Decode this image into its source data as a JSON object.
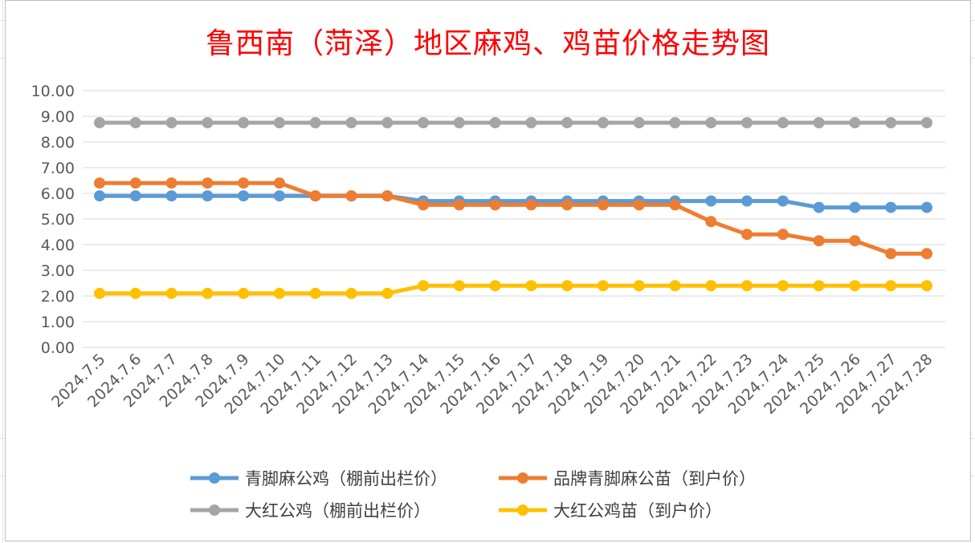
{
  "chart_data": {
    "type": "line",
    "title": "鲁西南（菏泽）地区麻鸡、鸡苗价格走势图",
    "categories": [
      "2024.7.5",
      "2024.7.6",
      "2024.7.7",
      "2024.7.8",
      "2024.7.9",
      "2024.7.10",
      "2024.7.11",
      "2024.7.12",
      "2024.7.13",
      "2024.7.14",
      "2024.7.15",
      "2024.7.16",
      "2024.7.17",
      "2024.7.18",
      "2024.7.19",
      "2024.7.20",
      "2024.7.21",
      "2024.7.22",
      "2024.7.23",
      "2024.7.24",
      "2024.7.25",
      "2024.7.26",
      "2024.7.27",
      "2024.7.28"
    ],
    "ylim": [
      0,
      10
    ],
    "y_ticks": [
      "0.00",
      "1.00",
      "2.00",
      "3.00",
      "4.00",
      "5.00",
      "6.00",
      "7.00",
      "8.00",
      "9.00",
      "10.00"
    ],
    "grid": true,
    "legend_position": "bottom",
    "series": [
      {
        "name": "青脚麻公鸡（棚前出栏价）",
        "color": "#5b9bd5",
        "values": [
          5.9,
          5.9,
          5.9,
          5.9,
          5.9,
          5.9,
          5.9,
          5.9,
          5.9,
          5.7,
          5.7,
          5.7,
          5.7,
          5.7,
          5.7,
          5.7,
          5.7,
          5.7,
          5.7,
          5.7,
          5.45,
          5.45,
          5.45,
          5.45
        ]
      },
      {
        "name": "品牌青脚麻公苗（到户价）",
        "color": "#ed7d31",
        "values": [
          6.4,
          6.4,
          6.4,
          6.4,
          6.4,
          6.4,
          5.9,
          5.9,
          5.9,
          5.55,
          5.55,
          5.55,
          5.55,
          5.55,
          5.55,
          5.55,
          5.55,
          4.9,
          4.4,
          4.4,
          4.15,
          4.15,
          3.65,
          3.65
        ]
      },
      {
        "name": "大红公鸡（棚前出栏价）",
        "color": "#a5a5a5",
        "values": [
          8.75,
          8.75,
          8.75,
          8.75,
          8.75,
          8.75,
          8.75,
          8.75,
          8.75,
          8.75,
          8.75,
          8.75,
          8.75,
          8.75,
          8.75,
          8.75,
          8.75,
          8.75,
          8.75,
          8.75,
          8.75,
          8.75,
          8.75,
          8.75
        ]
      },
      {
        "name": "大红公鸡苗（到户价）",
        "color": "#ffc000",
        "values": [
          2.1,
          2.1,
          2.1,
          2.1,
          2.1,
          2.1,
          2.1,
          2.1,
          2.1,
          2.4,
          2.4,
          2.4,
          2.4,
          2.4,
          2.4,
          2.4,
          2.4,
          2.4,
          2.4,
          2.4,
          2.4,
          2.4,
          2.4,
          2.4
        ]
      }
    ]
  }
}
